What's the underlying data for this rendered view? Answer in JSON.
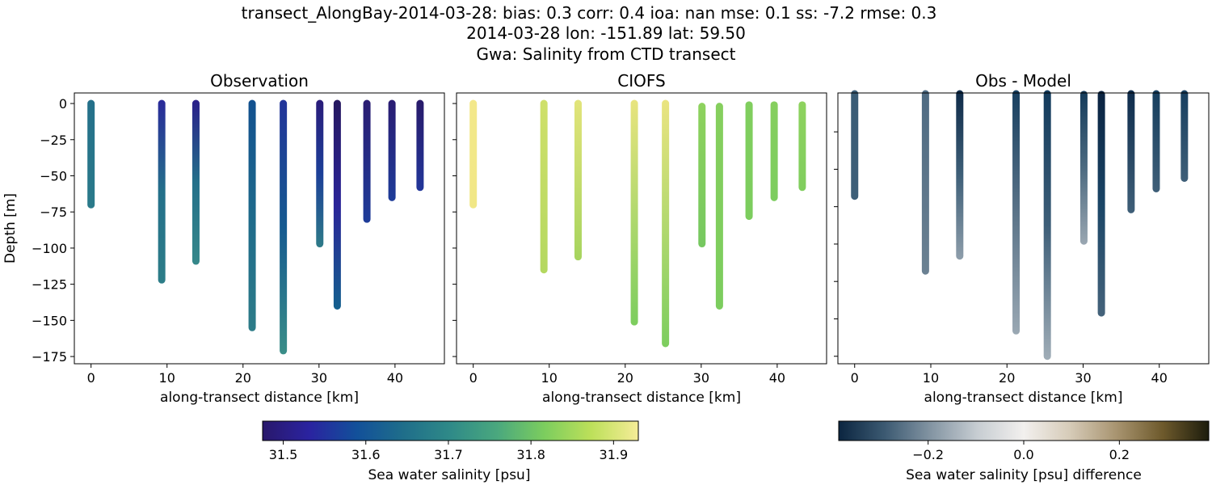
{
  "title_lines": [
    "transect_AlongBay-2014-03-28: bias: 0.3  corr: 0.4  ioa: nan  mse: 0.1  ss: -7.2  rmse: 0.3",
    "2014-03-28 lon: -151.89 lat: 59.50",
    "Gwa: Salinity from CTD transect"
  ],
  "chart_data": [
    {
      "type": "scatter",
      "title": "Observation",
      "xlabel": "along-transect distance [km]",
      "ylabel": "Depth [m]",
      "xlim": [
        -2.2,
        46.5
      ],
      "ylim": [
        -180,
        7.3
      ],
      "xticks": [
        0,
        10,
        20,
        30,
        40
      ],
      "yticks": [
        0,
        -25,
        -50,
        -75,
        -100,
        -125,
        -150,
        -175
      ],
      "grid": false,
      "profiles": [
        {
          "x": 0,
          "top": 0,
          "bottom": -70,
          "colors": [
            "#24708a",
            "#2a7a8a"
          ]
        },
        {
          "x": 9.3,
          "top": 0,
          "bottom": -122,
          "colors": [
            "#2a2a9a",
            "#24708a",
            "#2d7d88"
          ]
        },
        {
          "x": 13.8,
          "top": 0,
          "bottom": -109,
          "colors": [
            "#2a1f8a",
            "#24708a",
            "#36888a"
          ]
        },
        {
          "x": 21.2,
          "top": 0,
          "bottom": -155,
          "colors": [
            "#12508f",
            "#1e6a8b",
            "#2d7c88"
          ]
        },
        {
          "x": 25.3,
          "top": 0,
          "bottom": -171,
          "colors": [
            "#23349a",
            "#155a90",
            "#3a8e88"
          ]
        },
        {
          "x": 30.1,
          "top": 0,
          "bottom": -97,
          "colors": [
            "#2a1c7a",
            "#1c3f98",
            "#2e7b88"
          ]
        },
        {
          "x": 32.4,
          "top": 0,
          "bottom": -140,
          "colors": [
            "#26185f",
            "#2a2498",
            "#14608e"
          ]
        },
        {
          "x": 36.3,
          "top": 0,
          "bottom": -80,
          "colors": [
            "#2a1c72",
            "#1e3c99"
          ]
        },
        {
          "x": 39.6,
          "top": 0,
          "bottom": -65,
          "colors": [
            "#2a1c72",
            "#1e3c99"
          ]
        },
        {
          "x": 43.3,
          "top": 0,
          "bottom": -58,
          "colors": [
            "#281a6a",
            "#22369a"
          ]
        }
      ]
    },
    {
      "type": "scatter",
      "title": "CIOFS",
      "xlabel": "along-transect distance [km]",
      "xlim": [
        -2.2,
        46.5
      ],
      "ylim": [
        -180,
        7.3
      ],
      "xticks": [
        0,
        10,
        20,
        30,
        40
      ],
      "grid": false,
      "profiles": [
        {
          "x": 0,
          "top": 0,
          "bottom": -70,
          "colors": [
            "#f3e88a",
            "#f1e786"
          ]
        },
        {
          "x": 9.3,
          "top": 0,
          "bottom": -115,
          "colors": [
            "#cfe06a",
            "#b4d860"
          ]
        },
        {
          "x": 13.8,
          "top": 0,
          "bottom": -106,
          "colors": [
            "#e2e47a",
            "#a6d45e"
          ]
        },
        {
          "x": 21.2,
          "top": 0,
          "bottom": -151,
          "colors": [
            "#e8e47e",
            "#7ccd5e"
          ]
        },
        {
          "x": 25.3,
          "top": 0,
          "bottom": -166,
          "colors": [
            "#eae480",
            "#7ccd5e"
          ]
        },
        {
          "x": 30.1,
          "top": -2,
          "bottom": -97,
          "colors": [
            "#8ed25e",
            "#76c860"
          ]
        },
        {
          "x": 32.4,
          "top": -2,
          "bottom": -140,
          "colors": [
            "#86cf5e",
            "#7ccd5e"
          ]
        },
        {
          "x": 36.3,
          "top": -1,
          "bottom": -78,
          "colors": [
            "#80ce5e",
            "#7ccd5e"
          ]
        },
        {
          "x": 39.6,
          "top": -1,
          "bottom": -65,
          "colors": [
            "#86cf5e",
            "#7ccd5e"
          ]
        },
        {
          "x": 43.3,
          "top": -1,
          "bottom": -58,
          "colors": [
            "#8ed25e",
            "#80ce5e"
          ]
        }
      ]
    },
    {
      "type": "scatter",
      "title": "Obs - Model",
      "xlabel": "along-transect distance [km]",
      "xlim": [
        -2.2,
        46.5
      ],
      "ylim": [
        -180,
        1
      ],
      "xticks": [
        0,
        10,
        20,
        30,
        40
      ],
      "grid": false,
      "profiles": [
        {
          "x": 0,
          "top": 1,
          "bottom": -68,
          "colors": [
            "#3a5c76",
            "#3e5f78"
          ]
        },
        {
          "x": 9.3,
          "top": 1,
          "bottom": -118,
          "colors": [
            "#4e6a82",
            "#6b8192"
          ]
        },
        {
          "x": 13.8,
          "top": 1,
          "bottom": -108,
          "colors": [
            "#0e2a48",
            "#3e5f78",
            "#8e9eab"
          ]
        },
        {
          "x": 21.2,
          "top": 1,
          "bottom": -158,
          "colors": [
            "#173f60",
            "#5a7388",
            "#9aa8b3"
          ]
        },
        {
          "x": 25.3,
          "top": 1,
          "bottom": -175,
          "colors": [
            "#123a5c",
            "#3d5e78",
            "#a0adb7"
          ]
        },
        {
          "x": 30.1,
          "top": 0,
          "bottom": -98,
          "colors": [
            "#133a5a",
            "#4c6a80",
            "#9aa7b2"
          ]
        },
        {
          "x": 32.4,
          "top": 0,
          "bottom": -146,
          "colors": [
            "#0a2240",
            "#1a4566",
            "#45637b"
          ]
        },
        {
          "x": 36.3,
          "top": 1,
          "bottom": -77,
          "colors": [
            "#0e2c4c",
            "#3f5f78"
          ]
        },
        {
          "x": 39.6,
          "top": 1,
          "bottom": -63,
          "colors": [
            "#163e5e",
            "#3f5f78"
          ]
        },
        {
          "x": 43.3,
          "top": 1,
          "bottom": -56,
          "colors": [
            "#173f60",
            "#3f5f78"
          ]
        }
      ]
    }
  ],
  "colorbars": [
    {
      "label": "Sea water salinity [psu]",
      "range": [
        31.475,
        31.93
      ],
      "ticks": [
        "31.5",
        "31.6",
        "31.7",
        "31.8",
        "31.9"
      ],
      "tick_values": [
        31.5,
        31.6,
        31.7,
        31.8,
        31.9
      ],
      "colors": [
        "#29186b",
        "#2a23a0",
        "#12509a",
        "#1f6e8a",
        "#2f8a88",
        "#4aa87e",
        "#7ccd5e",
        "#bde05a",
        "#f5ec98"
      ]
    },
    {
      "label": "Sea water salinity [psu] difference",
      "range": [
        -0.387,
        0.387
      ],
      "ticks": [
        "−0.2",
        "0.0",
        "0.2"
      ],
      "tick_values": [
        -0.2,
        0.0,
        0.2
      ],
      "colors": [
        "#0b2540",
        "#3c5a72",
        "#8495a3",
        "#c7cdd2",
        "#f2f0ee",
        "#d6cbb8",
        "#a89470",
        "#6e5a2c",
        "#1c1c0c"
      ]
    }
  ]
}
